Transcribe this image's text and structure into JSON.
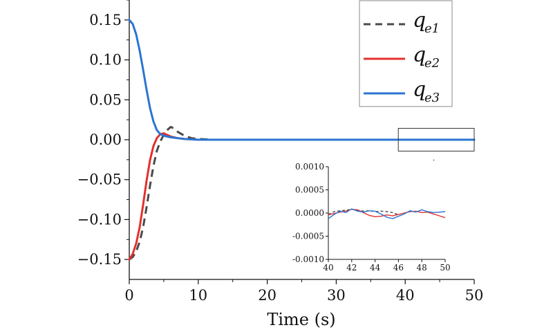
{
  "chart_data": {
    "type": "line",
    "title": "",
    "xlabel": "Time (s)",
    "ylabel": "",
    "xlim": [
      0,
      50
    ],
    "ylim": [
      -0.175,
      0.175
    ],
    "xticks": [
      0,
      10,
      20,
      30,
      40,
      50
    ],
    "xtick_labels": [
      "0",
      "10",
      "20",
      "30",
      "40",
      "50"
    ],
    "yticks": [
      0.15,
      0.1,
      0.05,
      0.0,
      -0.05,
      -0.1,
      -0.15
    ],
    "ytick_labels": [
      "0.15",
      "0.10",
      "0.05",
      "0.00",
      "−0.05",
      "−0.10",
      "−0.15"
    ],
    "grid": false,
    "legend_position": "top-right",
    "series": [
      {
        "name": "q",
        "subscript": "e1",
        "color": "#4a4a4a",
        "dash": true,
        "x": [
          0,
          0.5,
          1,
          1.5,
          2,
          2.5,
          3,
          3.5,
          4,
          4.5,
          5,
          5.5,
          6,
          6.5,
          7,
          8,
          9,
          10,
          12,
          14,
          20,
          30,
          40,
          50
        ],
        "y": [
          -0.15,
          -0.147,
          -0.14,
          -0.128,
          -0.11,
          -0.085,
          -0.058,
          -0.033,
          -0.014,
          -0.002,
          0.006,
          0.012,
          0.016,
          0.014,
          0.01,
          0.005,
          0.002,
          0.001,
          0.0,
          0.0,
          0.0,
          0.0,
          0.0,
          0.0
        ]
      },
      {
        "name": "q",
        "subscript": "e2",
        "color": "#e2312d",
        "dash": false,
        "x": [
          0,
          0.5,
          1,
          1.5,
          2,
          2.5,
          3,
          3.5,
          4,
          4.5,
          5,
          5.5,
          6,
          7,
          8,
          10,
          12,
          14,
          20,
          30,
          40,
          50
        ],
        "y": [
          -0.15,
          -0.143,
          -0.13,
          -0.11,
          -0.082,
          -0.052,
          -0.026,
          -0.008,
          0.002,
          0.007,
          0.008,
          0.006,
          0.004,
          0.002,
          0.001,
          0.0,
          0.0,
          0.0,
          0.0,
          0.0,
          0.0,
          0.0
        ]
      },
      {
        "name": "q",
        "subscript": "e3",
        "color": "#2a74d2",
        "dash": false,
        "x": [
          0,
          0.5,
          1,
          1.5,
          2,
          2.5,
          3,
          3.5,
          4,
          4.5,
          5,
          5.5,
          6,
          7,
          8,
          10,
          12,
          14,
          20,
          30,
          40,
          50
        ],
        "y": [
          0.15,
          0.145,
          0.132,
          0.112,
          0.088,
          0.063,
          0.04,
          0.023,
          0.012,
          0.007,
          0.005,
          0.004,
          0.003,
          0.002,
          0.001,
          0.0,
          0.0,
          0.0,
          0.0,
          0.0,
          0.0,
          0.0
        ]
      }
    ],
    "inset": {
      "xlim": [
        40,
        50
      ],
      "ylim": [
        -0.001,
        0.001
      ],
      "xticks": [
        40,
        42,
        44,
        46,
        48,
        50
      ],
      "xtick_labels": [
        "40",
        "42",
        "44",
        "46",
        "48",
        "50"
      ],
      "yticks": [
        0.001,
        0.0005,
        0.0,
        -0.0005,
        -0.001
      ],
      "ytick_labels": [
        "0.0010",
        "0.0005",
        "0.0000",
        "-0.0005",
        "-0.0010"
      ],
      "zoom_region": {
        "x": [
          40,
          50
        ],
        "y": [
          -0.003,
          0.003
        ]
      },
      "series": [
        {
          "color": "#4a4a4a",
          "dash": true,
          "x": [
            40,
            40.5,
            41,
            41.5,
            42,
            42.5,
            43,
            43.5,
            44,
            44.5,
            45,
            45.5,
            46
          ],
          "y": [
            -3e-05,
            3e-05,
            5e-05,
            6e-05,
            8e-05,
            6e-05,
            4e-05,
            5e-05,
            3e-05,
            4e-05,
            3e-05,
            1e-05,
            -4e-05
          ]
        },
        {
          "color": "#e2312d",
          "dash": false,
          "x": [
            40,
            40.5,
            41,
            41.5,
            42,
            42.5,
            43,
            43.5,
            44,
            44.5,
            45,
            45.5,
            46,
            46.5,
            47,
            47.5,
            48,
            48.5,
            49,
            49.5,
            50
          ],
          "y": [
            -4e-05,
            -1e-05,
            2e-05,
            4e-05,
            8e-05,
            7e-05,
            1e-05,
            -5e-05,
            -8e-05,
            -7e-05,
            -4e-05,
            -6e-05,
            -3e-05,
            0.0,
            3e-05,
            4e-05,
            1e-05,
            2e-05,
            -2e-05,
            -6e-05,
            -0.0001
          ]
        },
        {
          "color": "#2a74d2",
          "dash": false,
          "x": [
            40,
            40.5,
            41,
            41.5,
            42,
            42.5,
            43,
            43.5,
            44,
            44.5,
            45,
            45.5,
            46,
            46.5,
            47,
            47.5,
            48,
            48.5,
            49,
            49.5,
            50
          ],
          "y": [
            -0.00012,
            -3e-05,
            4e-05,
            1e-05,
            9e-05,
            4e-05,
            2e-05,
            5e-05,
            4e-05,
            -2e-05,
            -9e-05,
            -0.00012,
            -7e-05,
            -2e-05,
            5e-05,
            2e-05,
            7e-05,
            3e-05,
            1e-05,
            2e-05,
            3e-05
          ]
        }
      ]
    }
  }
}
